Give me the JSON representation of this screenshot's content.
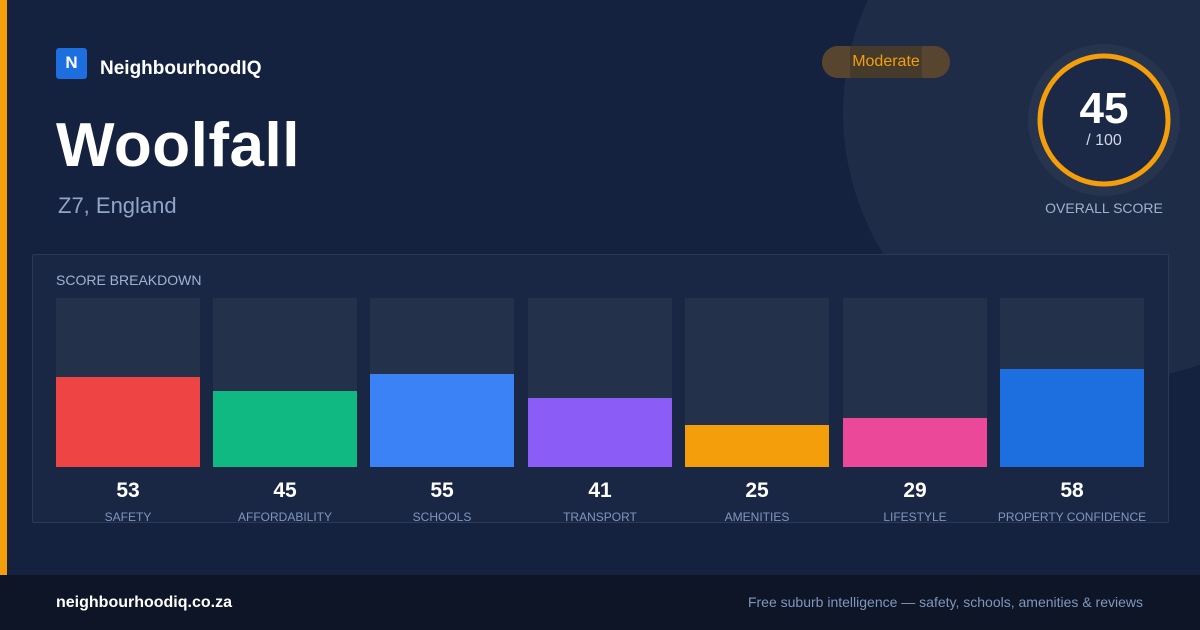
{
  "brand": {
    "logo_letter": "N",
    "name": "NeighbourhoodIQ"
  },
  "suburb": {
    "name": "Woolfall",
    "location": "Z7, England"
  },
  "badge": {
    "label": "Moderate",
    "color": "#f59e0b"
  },
  "overall": {
    "score": "45",
    "max": "/ 100",
    "label": "OVERALL SCORE",
    "fraction": 0.45,
    "color": "#f59e0b"
  },
  "breakdown": {
    "title": "SCORE BREAKDOWN",
    "items": [
      {
        "label": "SAFETY",
        "value": "53",
        "score": 53,
        "color": "#ef4444"
      },
      {
        "label": "AFFORDABILITY",
        "value": "45",
        "score": 45,
        "color": "#10b981"
      },
      {
        "label": "SCHOOLS",
        "value": "55",
        "score": 55,
        "color": "#3b82f6"
      },
      {
        "label": "TRANSPORT",
        "value": "41",
        "score": 41,
        "color": "#8b5cf6"
      },
      {
        "label": "AMENITIES",
        "value": "25",
        "score": 25,
        "color": "#f59e0b"
      },
      {
        "label": "LIFESTYLE",
        "value": "29",
        "score": 29,
        "color": "#ec4899"
      },
      {
        "label": "PROPERTY CONFIDENCE",
        "value": "58",
        "score": 58,
        "color": "#1d6fe0"
      }
    ]
  },
  "footer": {
    "url": "neighbourhoodiq.co.za",
    "tagline": "Free suburb intelligence — safety, schools, amenities & reviews"
  }
}
